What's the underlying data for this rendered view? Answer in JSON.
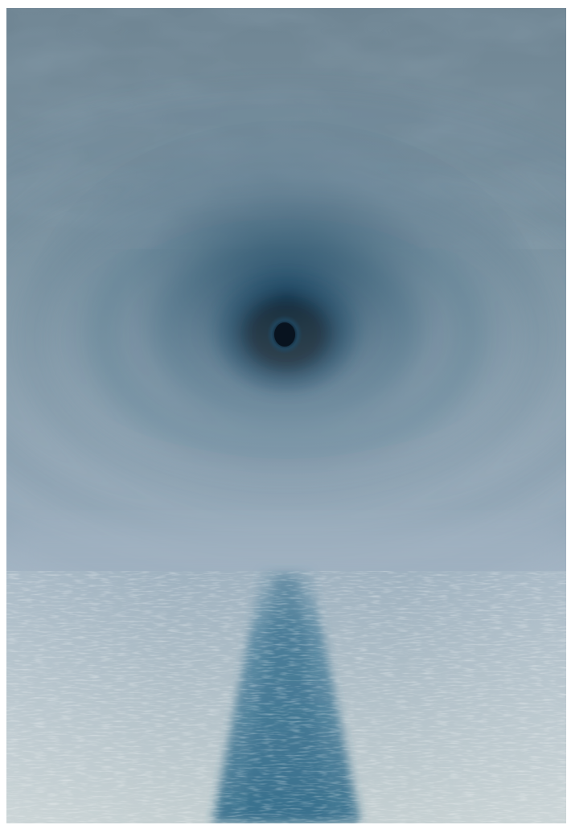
{
  "image": {
    "subject": "",
    "colors": {
      "sky_top": "#6f8593",
      "sky_mid": "#7f96a4",
      "sky_horizon": "#a3b4c3",
      "vortex_outer": "#5f7d92",
      "vortex_inner": "#1f4a66",
      "vortex_core": "#08131f",
      "sea_far": "#9fb2c0",
      "sea_near": "#c5d0d2",
      "glitter_band": "#3f7896",
      "glitter_core": "#2a6686",
      "frame": "#ffffff"
    }
  }
}
